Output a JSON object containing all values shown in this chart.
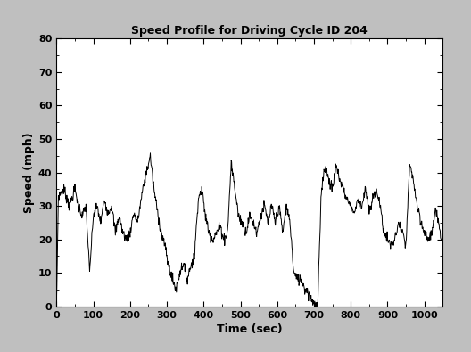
{
  "title": "Speed Profile for Driving Cycle ID 204",
  "xlabel": "Time (sec)",
  "ylabel": "Speed (mph)",
  "xlim": [
    0,
    1050
  ],
  "ylim": [
    0,
    80
  ],
  "xticks": [
    0,
    100,
    200,
    300,
    400,
    500,
    600,
    700,
    800,
    900,
    1000
  ],
  "yticks": [
    0,
    10,
    20,
    30,
    40,
    50,
    60,
    70,
    80
  ],
  "background_color": "#bfbfbf",
  "axes_bg_color": "#ffffff",
  "line_color": "#000000",
  "line_width": 0.7,
  "title_fontsize": 9,
  "label_fontsize": 9,
  "tick_fontsize": 8,
  "fig_width": 5.28,
  "fig_height": 3.95,
  "dpi": 100,
  "waypoints_t": [
    0,
    5,
    20,
    35,
    50,
    60,
    70,
    80,
    90,
    100,
    110,
    120,
    130,
    140,
    150,
    160,
    170,
    180,
    190,
    200,
    210,
    220,
    230,
    240,
    255,
    265,
    275,
    285,
    295,
    305,
    315,
    325,
    335,
    345,
    355,
    365,
    375,
    385,
    395,
    405,
    415,
    425,
    435,
    445,
    455,
    465,
    475,
    485,
    495,
    505,
    515,
    525,
    535,
    545,
    555,
    565,
    575,
    585,
    595,
    605,
    615,
    625,
    635,
    645,
    655,
    660,
    665,
    670,
    675,
    680,
    685,
    690,
    695,
    700,
    705,
    710,
    720,
    730,
    740,
    750,
    760,
    770,
    780,
    790,
    800,
    810,
    820,
    830,
    840,
    850,
    860,
    870,
    880,
    890,
    900,
    910,
    920,
    930,
    940,
    950,
    960,
    970,
    980,
    990,
    1000,
    1010,
    1020,
    1030,
    1040,
    1046
  ],
  "waypoints_v": [
    0,
    33,
    35,
    30,
    35,
    30,
    27,
    30,
    10,
    27,
    30,
    25,
    32,
    28,
    30,
    22,
    27,
    22,
    20,
    22,
    28,
    25,
    32,
    38,
    45,
    35,
    28,
    22,
    18,
    12,
    8,
    5,
    10,
    13,
    8,
    12,
    15,
    32,
    35,
    27,
    22,
    20,
    22,
    24,
    20,
    22,
    43,
    35,
    27,
    25,
    22,
    27,
    25,
    22,
    27,
    30,
    25,
    30,
    25,
    30,
    22,
    30,
    25,
    10,
    8,
    8,
    8,
    7,
    5,
    5,
    4,
    3,
    2,
    1,
    0,
    0,
    35,
    42,
    38,
    35,
    42,
    38,
    35,
    32,
    30,
    28,
    32,
    30,
    35,
    28,
    32,
    35,
    30,
    22,
    20,
    18,
    20,
    25,
    22,
    18,
    42,
    38,
    30,
    25,
    22,
    20,
    22,
    28,
    25,
    20
  ]
}
